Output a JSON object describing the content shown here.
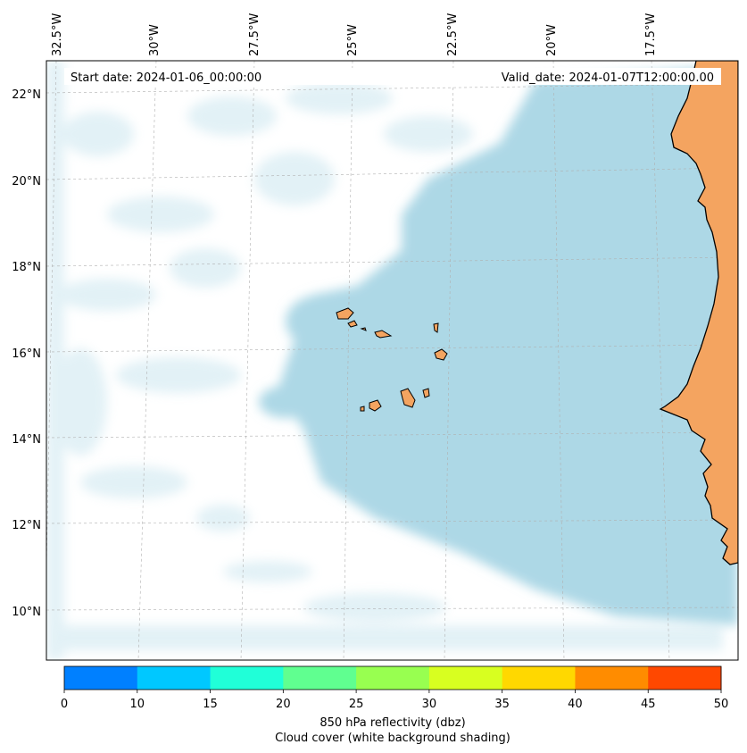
{
  "map": {
    "start_date_text": "Start date: 2024-01-06_00:00:00",
    "valid_date_text": "Valid_date: 2024-01-07T12:00:00.00",
    "longitude_labels": [
      "32.5°W",
      "30°W",
      "27.5°W",
      "25°W",
      "22.5°W",
      "20°W",
      "17.5°W"
    ],
    "latitude_labels": [
      "22°N",
      "20°N",
      "18°N",
      "16°N",
      "14°N",
      "12°N",
      "10°N"
    ],
    "land_color": "#f4a460",
    "cloud_color": "#add8e6"
  },
  "colorbar": {
    "ticks": [
      "0",
      "10",
      "15",
      "20",
      "25",
      "30",
      "35",
      "40",
      "45",
      "50"
    ],
    "colors": [
      "#0080ff",
      "#00c8ff",
      "#20ffd8",
      "#60ff90",
      "#98ff50",
      "#d8ff20",
      "#ffd800",
      "#ff8c00",
      "#ff4800"
    ],
    "label": "850 hPa reflectivity (dbz)",
    "sublabel": "Cloud cover (white background shading)"
  }
}
